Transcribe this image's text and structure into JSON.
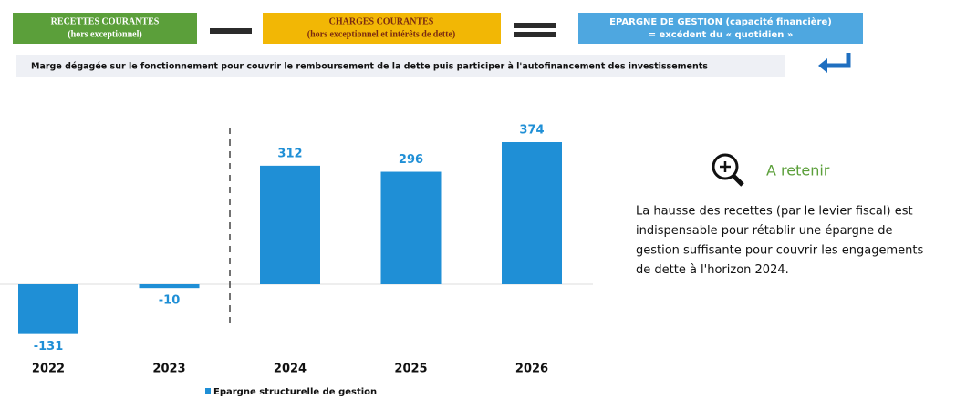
{
  "header": {
    "boxes": [
      {
        "title": "RECETTES COURANTES",
        "subtitle": "(hors exceptionnel)"
      },
      {
        "title": "CHARGES COURANTES",
        "subtitle": "(hors exceptionnel et intérêts de dette)"
      },
      {
        "title": "EPARGNE DE GESTION (capacité financière)",
        "subtitle": "= excédent du « quotidien »"
      }
    ],
    "caption": "Marge dégagée sur le fonctionnement pour couvrir le remboursement de la dette puis participer à l'autofinancement des investissements"
  },
  "note": {
    "title": "A retenir",
    "lines": [
      "La hausse des recettes (par le levier fiscal) est",
      "indispensable pour rétablir une épargne de",
      "gestion suffisante pour couvrir les engagements",
      "de dette à l'horizon 2024."
    ]
  },
  "chart_data": {
    "type": "bar",
    "categories": [
      "2022",
      "2023",
      "2024",
      "2025",
      "2026"
    ],
    "series": [
      {
        "name": "Epargne structurelle de gestion",
        "color": "#1f8fd6",
        "values": [
          -131,
          -10,
          312,
          296,
          374
        ]
      }
    ]
  }
}
